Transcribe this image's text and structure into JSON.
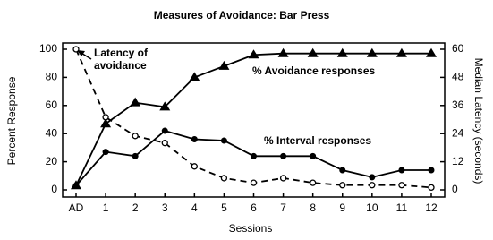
{
  "chart_data": {
    "type": "line",
    "title": "Measures of Avoidance: Bar Press",
    "x_label": "Sessions",
    "y_label": "Percent Response",
    "y2_label": "Median Latency (seconds)",
    "categories": [
      "AD",
      "1",
      "2",
      "3",
      "4",
      "5",
      "6",
      "7",
      "8",
      "9",
      "10",
      "11",
      "12"
    ],
    "ylim": [
      0,
      100
    ],
    "yticks": [
      0,
      20,
      40,
      60,
      80,
      100
    ],
    "y2lim": [
      0,
      60
    ],
    "y2ticks": [
      0,
      12,
      24,
      36,
      48,
      60
    ],
    "grid": false,
    "series": [
      {
        "name": "% Avoidance responses",
        "color": "#000000",
        "marker": "triangle",
        "dash": false,
        "axis": "y",
        "values": [
          3,
          47,
          62,
          59,
          80,
          88,
          96,
          97,
          97,
          97,
          97,
          97,
          97
        ]
      },
      {
        "name": "% Interval responses",
        "color": "#000000",
        "marker": "circle",
        "dash": false,
        "axis": "y",
        "values": [
          3,
          27,
          24,
          42,
          36,
          35,
          24,
          24,
          24,
          14,
          9,
          14,
          14
        ]
      },
      {
        "name": "Latency of avoidance",
        "color": "#000000",
        "marker": "open-circle",
        "dash": true,
        "axis": "y2",
        "values": [
          60,
          31,
          23,
          20,
          10,
          5,
          3,
          5,
          3,
          2,
          2,
          2,
          1
        ]
      }
    ]
  }
}
